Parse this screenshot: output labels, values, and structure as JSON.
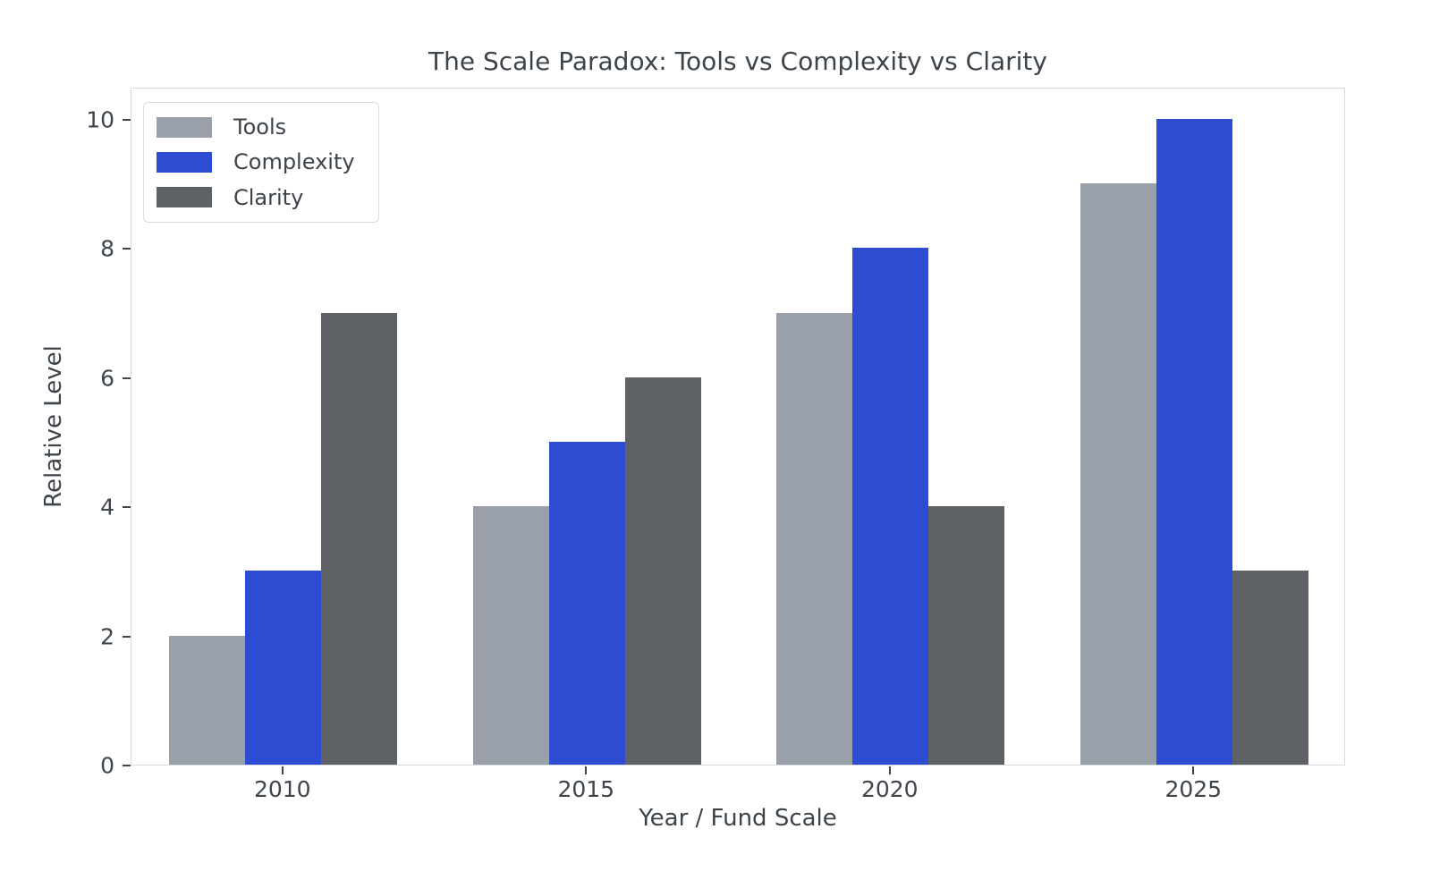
{
  "figure": {
    "title": "The Scale Paradox: Tools vs Complexity vs Clarity",
    "xlabel": "Year / Fund Scale",
    "ylabel": "Relative Level"
  },
  "chart_data": {
    "type": "bar",
    "title": "The Scale Paradox: Tools vs Complexity vs Clarity",
    "xlabel": "Year / Fund Scale",
    "ylabel": "Relative Level",
    "categories": [
      "2010",
      "2015",
      "2020",
      "2025"
    ],
    "series": [
      {
        "name": "Tools",
        "color": "#9aa0a9",
        "values": [
          2,
          4,
          7,
          9
        ]
      },
      {
        "name": "Complexity",
        "color": "#2d4cd2",
        "values": [
          3,
          5,
          8,
          10
        ]
      },
      {
        "name": "Clarity",
        "color": "#5e6266",
        "values": [
          7,
          6,
          4,
          3
        ]
      }
    ],
    "yticks": [
      0,
      2,
      4,
      6,
      8,
      10
    ],
    "ylim": [
      0,
      10.5
    ],
    "grid": false,
    "legend_position": "upper-left",
    "bar_width_category_fraction": 0.25
  },
  "colors": {
    "background": "#ffffff",
    "spine": "#d8dadc",
    "title_text": "#3d434b",
    "tick_text": "#3f454d",
    "legend_border": "#d9dbde"
  }
}
